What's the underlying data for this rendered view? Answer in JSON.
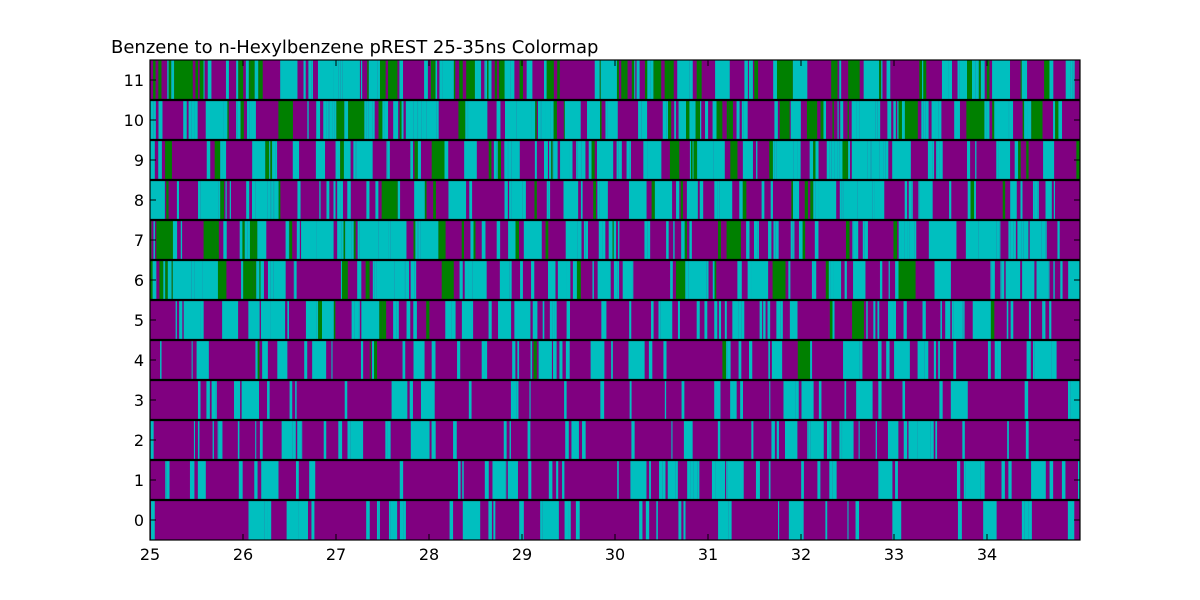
{
  "chart_data": {
    "type": "heatmap",
    "title": "Benzene to n-Hexylbenzene pREST 25-35ns Colormap",
    "xlabel": "",
    "ylabel": "",
    "xlim": [
      25,
      35
    ],
    "x_ticks": [
      "25",
      "26",
      "27",
      "28",
      "29",
      "30",
      "31",
      "32",
      "33",
      "34"
    ],
    "y_ticks": [
      "0",
      "1",
      "2",
      "3",
      "4",
      "5",
      "6",
      "7",
      "8",
      "9",
      "10",
      "11"
    ],
    "colors": {
      "state_a": "#800080",
      "state_b": "#00bfbf",
      "state_c": "#008000"
    },
    "rows": [
      {
        "label": "0",
        "cyan": 0.22,
        "green": 0.0,
        "green_bias": 0.0
      },
      {
        "label": "1",
        "cyan": 0.25,
        "green": 0.0,
        "green_bias": 0.0
      },
      {
        "label": "2",
        "cyan": 0.26,
        "green": 0.0,
        "green_bias": 0.0
      },
      {
        "label": "3",
        "cyan": 0.24,
        "green": 0.0,
        "green_bias": 0.0
      },
      {
        "label": "4",
        "cyan": 0.3,
        "green": 0.01,
        "green_bias": 0.0
      },
      {
        "label": "5",
        "cyan": 0.4,
        "green": 0.02,
        "green_bias": 0.0
      },
      {
        "label": "6",
        "cyan": 0.42,
        "green": 0.1,
        "green_bias": 1.0
      },
      {
        "label": "7",
        "cyan": 0.42,
        "green": 0.14,
        "green_bias": 1.0
      },
      {
        "label": "8",
        "cyan": 0.42,
        "green": 0.1,
        "green_bias": 0.4
      },
      {
        "label": "9",
        "cyan": 0.44,
        "green": 0.12,
        "green_bias": 0.3
      },
      {
        "label": "10",
        "cyan": 0.44,
        "green": 0.14,
        "green_bias": 0.0
      },
      {
        "label": "11",
        "cyan": 0.36,
        "green": 0.24,
        "green_bias": -0.2
      }
    ]
  }
}
